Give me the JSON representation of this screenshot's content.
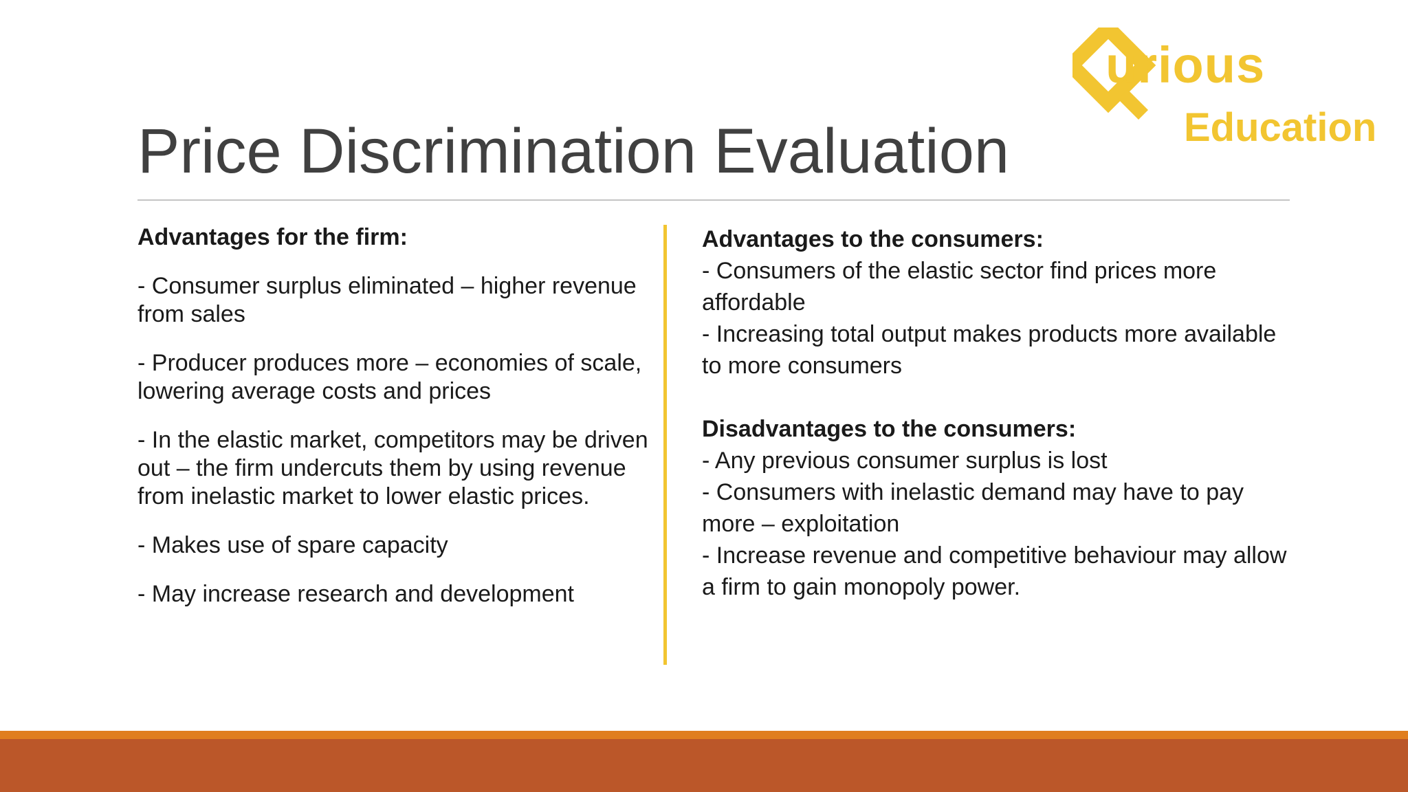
{
  "logo": {
    "brand_word": "urious",
    "sub_word": "Education"
  },
  "title": "Price Discrimination Evaluation",
  "left": {
    "heading": "Advantages for the firm:",
    "points": [
      "- Consumer surplus eliminated – higher revenue from sales",
      "- Producer produces more – economies of scale, lowering average costs and prices",
      "- In the elastic market, competitors may be driven out – the firm undercuts them by using revenue from inelastic market to lower elastic prices.",
      "- Makes use of spare capacity",
      "- May increase research and development"
    ]
  },
  "right": {
    "adv_heading": "Advantages to the consumers:",
    "adv_points": [
      "- Consumers of the elastic sector find prices more affordable",
      "- Increasing total output makes products more available to more consumers"
    ],
    "dis_heading": "Disadvantages to the consumers:",
    "dis_points": [
      "- Any previous consumer surplus is lost",
      "- Consumers with inelastic demand may have to pay more – exploitation",
      "- Increase revenue and competitive behaviour may allow a firm to gain monopoly power."
    ]
  },
  "colors": {
    "accent": "#f2c531",
    "footer_top": "#e07e1f",
    "footer": "#bb5729",
    "title": "#404040"
  }
}
